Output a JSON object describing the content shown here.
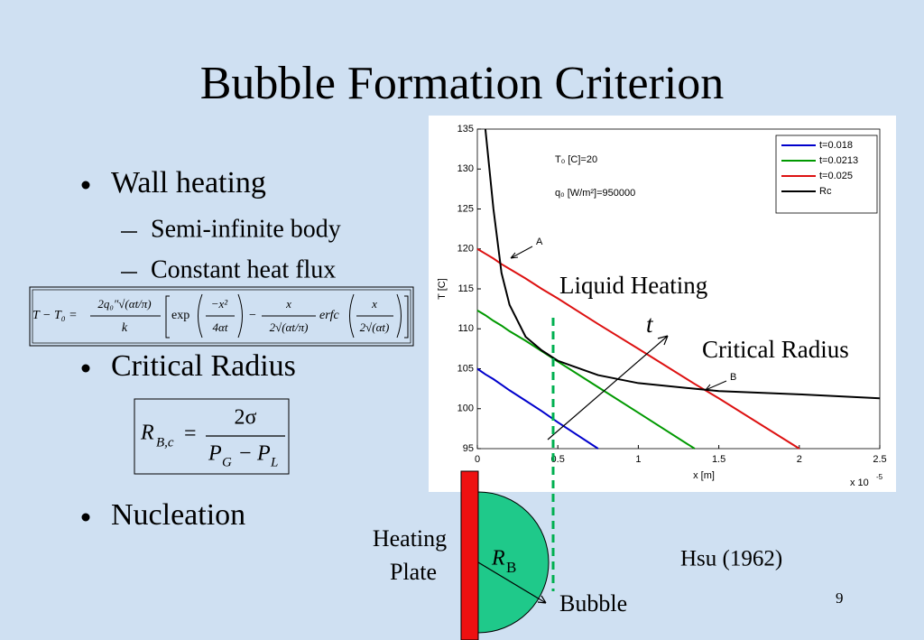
{
  "title": "Bubble Formation Criterion",
  "bullets": [
    {
      "text": "Wall heating",
      "sub": [
        "Semi-infinite body",
        "Constant heat flux"
      ]
    },
    {
      "text": "Critical Radius"
    },
    {
      "text": "Nucleation"
    }
  ],
  "equations": {
    "heat_flux": {
      "lhs": "T − T₀ =",
      "coef_num": "2q₀″√(αt/π)",
      "coef_den": "k",
      "exp": "exp",
      "exp_num": "−x²",
      "exp_den": "4αt",
      "minus": "−",
      "frac_num": "x",
      "frac_den": "2√(αt/π)",
      "erfc": "erfc",
      "erfc_num": "x",
      "erfc_den": "2√(αt)"
    },
    "critical_radius": {
      "lhs": "R",
      "lhs_sub": "B,c",
      "eq": "=",
      "num": "2σ",
      "p1": "P",
      "p1_sub": "G",
      "minus": "−",
      "p2": "P",
      "p2_sub": "L"
    }
  },
  "chart_data": {
    "type": "line",
    "xlabel": "x [m]",
    "ylabel": "T [C]",
    "x_multiplier": {
      "base": "x 10",
      "exponent": "-5"
    },
    "x": [
      0,
      0.05,
      0.1,
      0.15,
      0.2,
      0.3,
      0.4,
      0.5,
      0.75,
      1.0,
      1.35,
      1.5,
      2.0,
      2.5
    ],
    "series": [
      {
        "name": "t=0.018",
        "color": "#0000cc",
        "values": [
          105,
          104.3,
          103.7,
          103,
          102.3,
          101,
          99.7,
          98.3,
          95,
          null,
          null,
          null,
          null,
          null
        ]
      },
      {
        "name": "t=0.0213",
        "color": "#009900",
        "values": [
          112.3,
          111.7,
          111,
          110.4,
          109.7,
          108.5,
          107.2,
          105.9,
          102.7,
          99.5,
          95,
          null,
          null,
          null
        ]
      },
      {
        "name": "t=0.025",
        "color": "#dd1111",
        "values": [
          120,
          119.4,
          118.8,
          118.1,
          117.5,
          116.3,
          115,
          113.8,
          110.6,
          107.5,
          103.1,
          101.3,
          95,
          null
        ]
      },
      {
        "name": "Rc",
        "color": "#000000",
        "values": [
          null,
          135,
          125,
          117,
          113,
          109,
          107.3,
          106,
          104.2,
          103.2,
          102.5,
          102.2,
          101.8,
          101.3
        ]
      }
    ],
    "xlim": [
      0,
      2.5
    ],
    "xticks": [
      0,
      0.5,
      1,
      1.5,
      2,
      2.5
    ],
    "ylim": [
      95,
      135
    ],
    "yticks": [
      95,
      100,
      105,
      110,
      115,
      120,
      125,
      130,
      135
    ],
    "legend": "upper right",
    "annotations": [
      "T₀ [C]=20",
      "q₀ [W/m²]=950000",
      "A",
      "B"
    ]
  },
  "overlay": {
    "liquid_heating": "Liquid Heating",
    "t": "t",
    "critical_radius": "Critical Radius",
    "heating_plate": [
      "Heating",
      "Plate"
    ],
    "radius": "R",
    "radius_sub": "B",
    "bubble": "Bubble",
    "reference": "Hsu (1962)",
    "page": "9"
  }
}
